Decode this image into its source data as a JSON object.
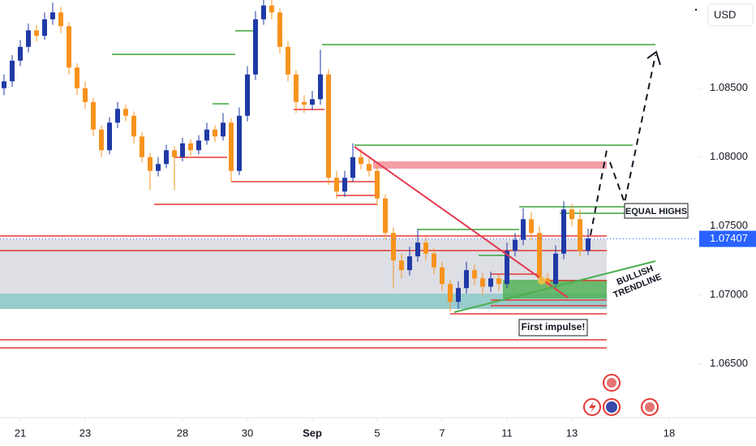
{
  "chart_data": {
    "type": "candlestick",
    "currency": "USD",
    "up_color": "#1f3aa6",
    "down_color": "#f7931e",
    "x": [
      -0.5,
      -0.25,
      0,
      0.25,
      0.5,
      0.75,
      1,
      1.25,
      1.5,
      1.75,
      2,
      2.25,
      2.5,
      2.75,
      3,
      3.25,
      3.5,
      3.75,
      4,
      4.25,
      4.5,
      4.75,
      5,
      5.25,
      5.5,
      5.75,
      6,
      6.25,
      6.5,
      6.75,
      7,
      7.25,
      7.5,
      7.75,
      8,
      8.25,
      8.5,
      8.75,
      9,
      9.25,
      9.5,
      9.75,
      10,
      10.25,
      10.5,
      10.75,
      11,
      11.25,
      11.5,
      11.75,
      12,
      12.25,
      12.5,
      12.75,
      13,
      13.25,
      13.5,
      13.75,
      14,
      14.25,
      14.5,
      14.75,
      15,
      15.25,
      15.5,
      15.75,
      16,
      16.25,
      16.5,
      16.75,
      17,
      17.25,
      17.5
    ],
    "open": [
      1.085,
      1.0855,
      1.087,
      1.088,
      1.0892,
      1.0888,
      1.09,
      1.0905,
      1.0895,
      1.0865,
      1.085,
      1.084,
      1.082,
      1.0805,
      1.0825,
      1.0835,
      1.083,
      1.0815,
      1.08,
      1.079,
      1.0795,
      1.0805,
      1.08,
      1.081,
      1.0805,
      1.0812,
      1.082,
      1.0815,
      1.0825,
      1.079,
      1.083,
      1.086,
      1.09,
      1.091,
      1.0905,
      1.088,
      1.086,
      1.084,
      1.0838,
      1.0842,
      1.086,
      1.0785,
      1.0775,
      1.0785,
      1.08,
      1.0795,
      1.079,
      1.077,
      1.0745,
      1.0725,
      1.0718,
      1.0728,
      1.0738,
      1.073,
      1.072,
      1.0708,
      1.0695,
      1.0705,
      1.0718,
      1.0712,
      1.0706,
      1.0712,
      1.0708,
      1.0732,
      1.074,
      1.0755,
      1.0745,
      1.0712,
      1.0708,
      1.073,
      1.0762,
      1.0755,
      1.0732
    ],
    "high": [
      1.086,
      1.0874,
      1.0885,
      1.0897,
      1.0896,
      1.0905,
      1.0912,
      1.0909,
      1.0898,
      1.0868,
      1.0855,
      1.0843,
      1.0823,
      1.0829,
      1.084,
      1.0838,
      1.0833,
      1.0818,
      1.0803,
      1.08,
      1.0809,
      1.0808,
      1.0814,
      1.0813,
      1.0816,
      1.0825,
      1.0823,
      1.0832,
      1.0828,
      1.0836,
      1.0866,
      1.0906,
      1.0914,
      1.0914,
      1.0908,
      1.0884,
      1.0863,
      1.0845,
      1.0848,
      1.0878,
      1.0864,
      1.079,
      1.079,
      1.081,
      1.0806,
      1.0799,
      1.0794,
      1.0773,
      1.0749,
      1.073,
      1.0735,
      1.0748,
      1.0742,
      1.0734,
      1.0724,
      1.0711,
      1.071,
      1.0724,
      1.0722,
      1.0716,
      1.0717,
      1.0715,
      1.0738,
      1.0745,
      1.0763,
      1.076,
      1.075,
      1.0716,
      1.0736,
      1.0768,
      1.0766,
      1.0762,
      1.0748
    ],
    "low": [
      1.0845,
      1.0851,
      1.0866,
      1.0876,
      1.0884,
      1.0885,
      1.0896,
      1.089,
      1.086,
      1.0845,
      1.0835,
      1.0815,
      1.08,
      1.0802,
      1.0821,
      1.0826,
      1.081,
      1.0796,
      1.0776,
      1.0786,
      1.0792,
      1.0776,
      1.0797,
      1.0801,
      1.0802,
      1.0809,
      1.0811,
      1.0812,
      1.0782,
      1.0787,
      1.0826,
      1.0856,
      1.0896,
      1.09,
      1.0875,
      1.0855,
      1.0832,
      1.0832,
      1.0834,
      1.0838,
      1.078,
      1.077,
      1.0771,
      1.0782,
      1.0791,
      1.0786,
      1.0765,
      1.074,
      1.0705,
      1.0712,
      1.0714,
      1.0724,
      1.0725,
      1.0715,
      1.0703,
      1.0688,
      1.069,
      1.0701,
      1.0707,
      1.07,
      1.0702,
      1.0703,
      1.0705,
      1.0728,
      1.0736,
      1.074,
      1.0708,
      1.0704,
      1.0705,
      1.0726,
      1.075,
      1.0728,
      1.0729
    ],
    "close": [
      1.0855,
      1.087,
      1.088,
      1.0892,
      1.0888,
      1.09,
      1.0905,
      1.0895,
      1.0865,
      1.085,
      1.084,
      1.082,
      1.0805,
      1.0825,
      1.0835,
      1.083,
      1.0815,
      1.08,
      1.079,
      1.0795,
      1.0805,
      1.08,
      1.081,
      1.0805,
      1.0812,
      1.082,
      1.0815,
      1.0825,
      1.079,
      1.083,
      1.086,
      1.09,
      1.091,
      1.0905,
      1.088,
      1.086,
      1.084,
      1.0838,
      1.0842,
      1.086,
      1.0785,
      1.0775,
      1.0785,
      1.08,
      1.0795,
      1.079,
      1.077,
      1.0745,
      1.0725,
      1.0718,
      1.0728,
      1.0738,
      1.073,
      1.072,
      1.0708,
      1.0695,
      1.0705,
      1.0718,
      1.0712,
      1.0706,
      1.0712,
      1.0708,
      1.0732,
      1.074,
      1.0755,
      1.0745,
      1.0712,
      1.0708,
      1.073,
      1.0762,
      1.0755,
      1.0732,
      1.0741
    ],
    "xlim": [
      -0.625,
      20.875
    ],
    "ylim": [
      1.0611,
      1.0914
    ],
    "xticks": [
      {
        "value": 0,
        "label": "21"
      },
      {
        "value": 2,
        "label": "23"
      },
      {
        "value": 5,
        "label": "28"
      },
      {
        "value": 7,
        "label": "30"
      },
      {
        "value": 9,
        "label": "Sep"
      },
      {
        "value": 11,
        "label": "5"
      },
      {
        "value": 13,
        "label": "7"
      },
      {
        "value": 15,
        "label": "11"
      },
      {
        "value": 17,
        "label": "13"
      },
      {
        "value": 20,
        "label": "18"
      }
    ],
    "yticks": [
      {
        "value": 1.065,
        "label": "1.06500"
      },
      {
        "value": 1.07,
        "label": "1.07000"
      },
      {
        "value": 1.075,
        "label": "1.07500"
      },
      {
        "value": 1.08,
        "label": "1.08000"
      },
      {
        "value": 1.085,
        "label": "1.08500"
      }
    ],
    "last_price": 1.07407,
    "annotations": {
      "equal_highs": "EQUAL HIGHS",
      "bullish": "BULLISH",
      "trendline": "TRENDLINE",
      "first_impulse": "First impulse!"
    }
  }
}
